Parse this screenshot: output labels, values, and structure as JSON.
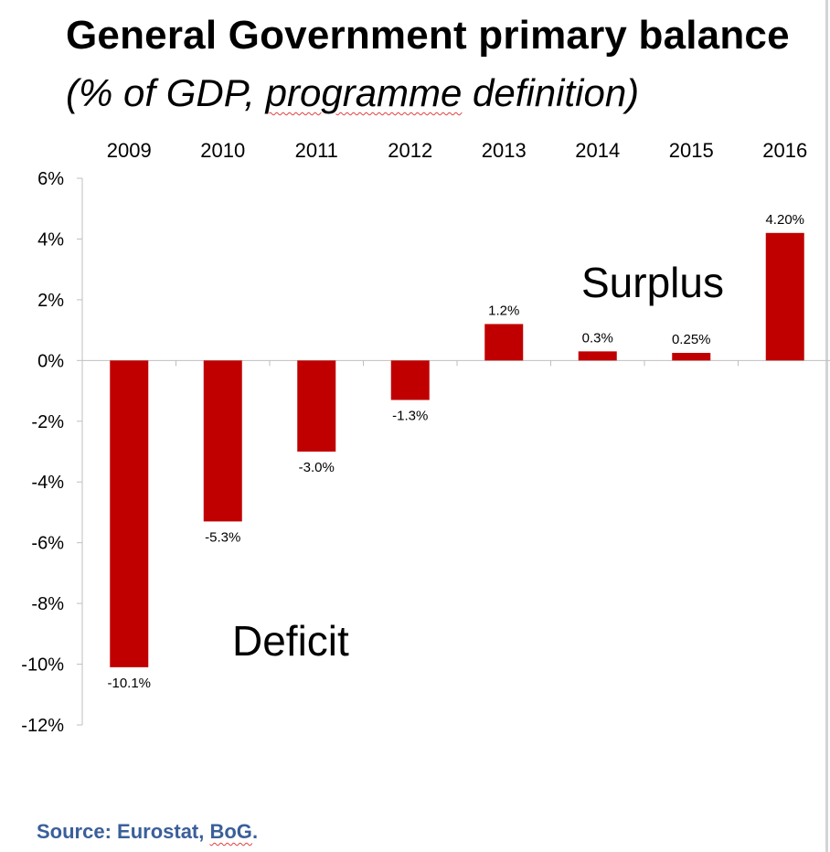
{
  "chart_data": {
    "type": "bar",
    "title": "General Government primary balance",
    "subtitle_prefix": "(% of GDP, ",
    "subtitle_underlined": "programme",
    "subtitle_suffix": " definition)",
    "categories": [
      "2009",
      "2010",
      "2011",
      "2012",
      "2013",
      "2014",
      "2015",
      "2016"
    ],
    "values": [
      -10.1,
      -5.3,
      -3.0,
      -1.3,
      1.2,
      0.3,
      0.25,
      4.2
    ],
    "data_labels": [
      "-10.1%",
      "-5.3%",
      "-3.0%",
      "-1.3%",
      "1.2%",
      "0.3%",
      "0.25%",
      "4.20%"
    ],
    "ylim": [
      -12,
      6
    ],
    "yticks": [
      6,
      4,
      2,
      0,
      -2,
      -4,
      -6,
      -8,
      -10,
      -12
    ],
    "ytick_labels": [
      "6%",
      "4%",
      "2%",
      "0%",
      "-2%",
      "-4%",
      "-6%",
      "-8%",
      "-10%",
      "-12%"
    ],
    "category_axis_position": "top",
    "grid": false,
    "legend": "none",
    "bar_color": "#c00000",
    "annotations": {
      "surplus": "Surplus",
      "deficit": "Deficit"
    }
  },
  "source": {
    "prefix": "Source: Eurostat, ",
    "underlined": "BoG",
    "suffix": "."
  },
  "colors": {
    "bar": "#c00000",
    "source_text": "#3a5f9a",
    "axis": "#bfbfbf"
  }
}
